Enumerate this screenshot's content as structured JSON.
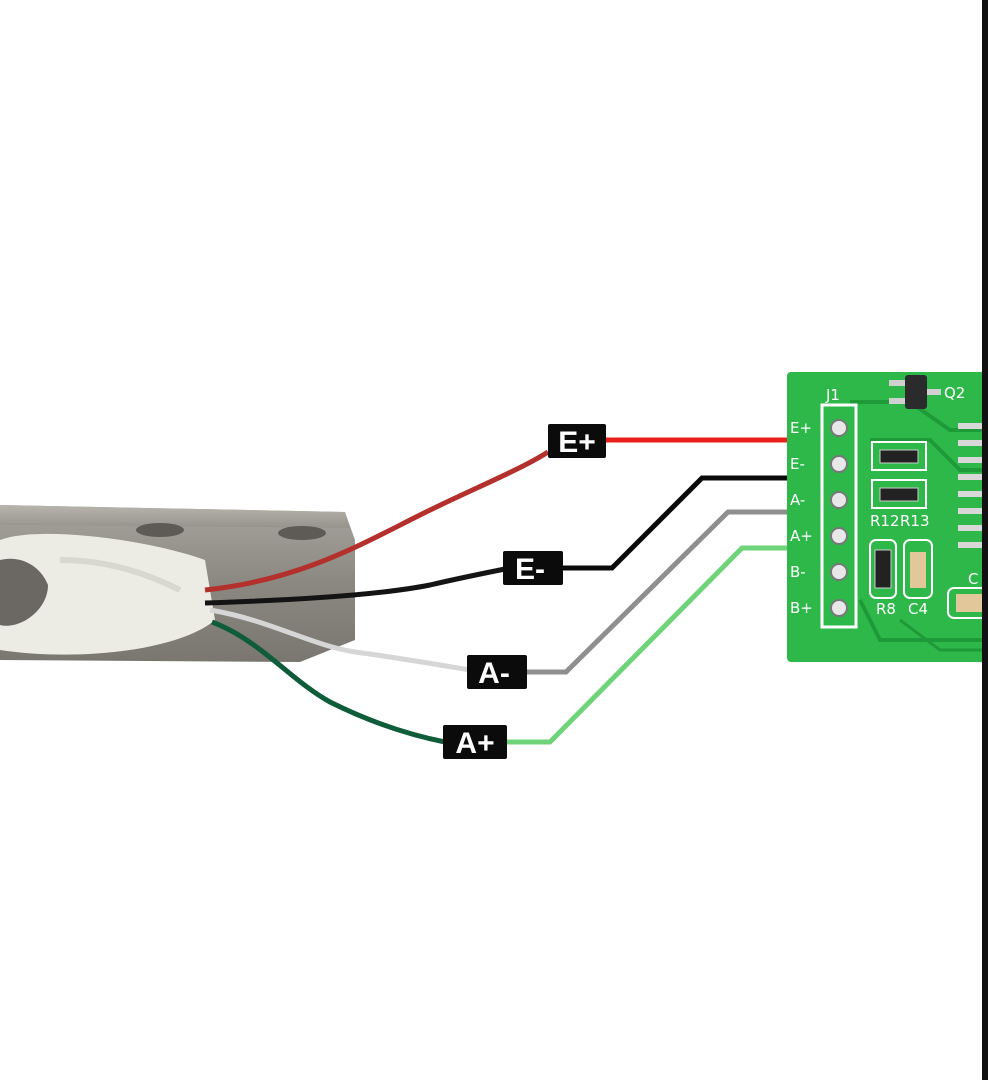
{
  "wires": [
    {
      "id": "e_plus",
      "label": "E+",
      "color": "#e8201c",
      "cable_color": "#b3302c"
    },
    {
      "id": "e_minus",
      "label": "E-",
      "color": "#0a0a0a",
      "cable_color": "#141414"
    },
    {
      "id": "a_minus",
      "label": "A-",
      "color": "#8f8f8f",
      "cable_color": "#d6d6d6"
    },
    {
      "id": "a_plus",
      "label": "A+",
      "color": "#6fd37a",
      "cable_color": "#0f5c3a"
    }
  ],
  "pcb": {
    "color": "#2fb84a",
    "connector_label": "J1",
    "pins": [
      "E+",
      "E-",
      "A-",
      "A+",
      "B-",
      "B+"
    ],
    "components": [
      "Q2",
      "R12",
      "R13",
      "R8",
      "C4",
      "C"
    ]
  }
}
